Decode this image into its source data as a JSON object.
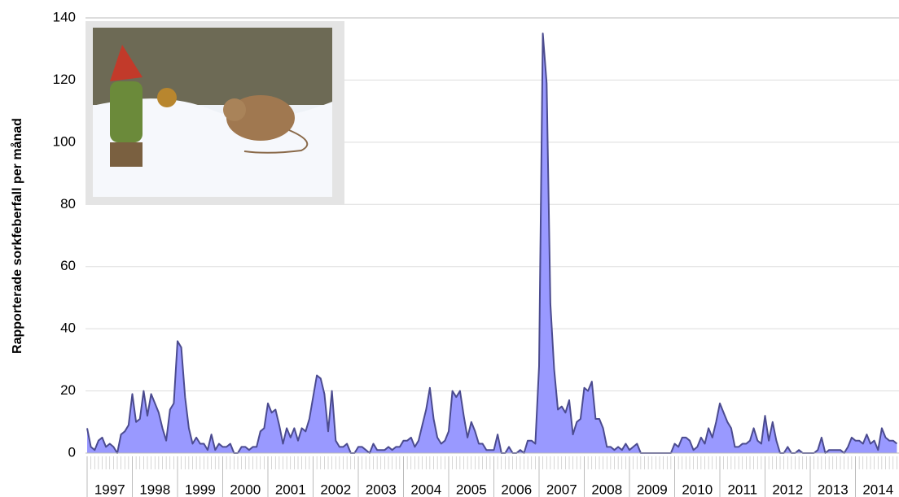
{
  "chart_data": {
    "type": "area",
    "y_label": "Rapporterade sorkfeberfall per månad",
    "categories": [
      "1997",
      "1998",
      "1999",
      "2000",
      "2001",
      "2002",
      "2003",
      "2004",
      "2005",
      "2006",
      "2007",
      "2008",
      "2009",
      "2010",
      "2011",
      "2012",
      "2013",
      "2014"
    ],
    "values": [
      [
        8,
        2,
        1,
        4,
        5,
        2,
        3,
        2,
        0,
        6,
        7,
        9
      ],
      [
        19,
        10,
        11,
        20,
        12,
        19,
        16,
        13,
        8,
        4,
        14,
        16
      ],
      [
        36,
        34,
        18,
        8,
        3,
        5,
        3,
        3,
        1,
        6,
        1,
        3
      ],
      [
        2,
        2,
        3,
        0,
        0,
        2,
        2,
        1,
        2,
        2,
        7,
        8
      ],
      [
        16,
        13,
        14,
        9,
        3,
        8,
        5,
        8,
        4,
        8,
        7,
        11
      ],
      [
        18,
        25,
        24,
        19,
        7,
        20,
        4,
        2,
        2,
        3,
        0,
        0
      ],
      [
        2,
        2,
        1,
        0,
        3,
        1,
        1,
        1,
        2,
        1,
        2,
        2
      ],
      [
        4,
        4,
        5,
        2,
        4,
        9,
        14,
        21,
        11,
        5,
        3,
        4
      ],
      [
        7,
        20,
        18,
        20,
        12,
        5,
        10,
        7,
        3,
        3,
        1,
        1
      ],
      [
        1,
        6,
        0,
        0,
        2,
        0,
        0,
        1,
        0,
        4,
        4,
        3
      ],
      [
        28,
        135,
        119,
        48,
        27,
        14,
        15,
        13,
        17,
        6,
        10,
        11
      ],
      [
        21,
        20,
        23,
        11,
        11,
        8,
        2,
        2,
        1,
        2,
        1,
        3
      ],
      [
        1,
        2,
        3,
        0,
        0,
        0,
        0,
        0,
        0,
        0,
        0,
        0
      ],
      [
        3,
        2,
        5,
        5,
        4,
        1,
        2,
        5,
        3,
        8,
        5,
        10
      ],
      [
        16,
        13,
        10,
        8,
        2,
        2,
        3,
        3,
        4,
        8,
        4,
        3
      ],
      [
        12,
        4,
        10,
        4,
        0,
        0,
        2,
        0,
        0,
        1,
        0,
        0
      ],
      [
        0,
        0,
        1,
        5,
        0,
        1,
        1,
        1,
        1,
        0,
        2,
        5
      ],
      [
        4,
        4,
        3,
        6,
        3,
        4,
        1,
        8,
        5,
        4,
        4,
        3
      ]
    ],
    "color": "#9999ff",
    "line_color": "#4b4b8f",
    "ylim": [
      0,
      140
    ],
    "yticks": [
      0,
      20,
      40,
      60,
      80,
      100,
      120,
      140
    ],
    "grid": true
  }
}
